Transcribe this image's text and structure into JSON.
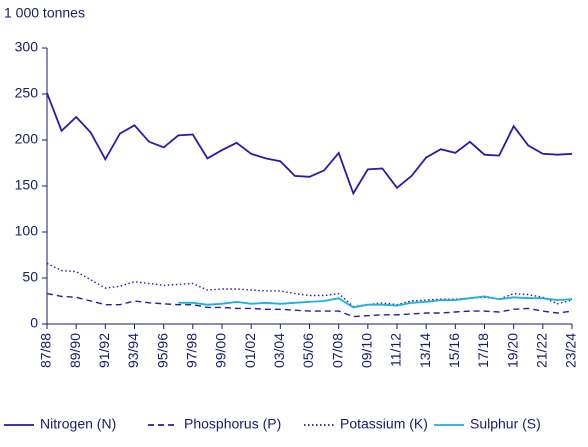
{
  "chart_data": {
    "type": "line",
    "y_label": "1 000 tonnes",
    "categories": [
      "87/88",
      null,
      "89/90",
      null,
      "91/92",
      null,
      "93/94",
      null,
      "95/96",
      null,
      "97/98",
      null,
      "99/00",
      null,
      "01/02",
      null,
      "03/04",
      null,
      "05/06",
      null,
      "07/08",
      null,
      "09/10",
      null,
      "11/12",
      null,
      "13/14",
      null,
      "15/16",
      null,
      "17/18",
      null,
      "19/20",
      null,
      "21/22",
      null,
      "23/24"
    ],
    "series": [
      {
        "name": "Nitrogen (N)",
        "color": "#2a1aa8",
        "line_style": "solid",
        "values": [
          251,
          210,
          225,
          208,
          179,
          207,
          216,
          198,
          192,
          205,
          206,
          180,
          189,
          197,
          185,
          180,
          177,
          161,
          160,
          167,
          186,
          142,
          168,
          169,
          148,
          161,
          181,
          190,
          186,
          198,
          184,
          183,
          215,
          194,
          185,
          184,
          185
        ]
      },
      {
        "name": "Phosphorus (P)",
        "color": "#2a1aa8",
        "line_style": "dashed",
        "values": [
          33,
          30,
          29,
          25,
          21,
          21,
          25,
          23,
          22,
          21,
          21,
          18,
          18,
          17,
          17,
          16,
          16,
          15,
          14,
          14,
          14,
          8,
          9,
          10,
          10,
          11,
          12,
          12,
          13,
          14,
          14,
          13,
          16,
          17,
          14,
          12,
          14
        ]
      },
      {
        "name": "Potassium (K)",
        "color": "#2a1aa8",
        "line_style": "dotted",
        "values": [
          66,
          58,
          57,
          48,
          39,
          41,
          46,
          44,
          42,
          43,
          44,
          37,
          38,
          38,
          37,
          36,
          36,
          33,
          31,
          31,
          33,
          19,
          21,
          23,
          21,
          25,
          26,
          27,
          27,
          28,
          29,
          27,
          33,
          32,
          29,
          22,
          26
        ]
      },
      {
        "name": "Sulphur (S)",
        "color": "#1ab0e0",
        "line_style": "solid",
        "values": [
          null,
          null,
          null,
          null,
          null,
          null,
          null,
          null,
          null,
          23,
          23,
          21,
          22,
          24,
          22,
          23,
          22,
          23,
          24,
          25,
          28,
          18,
          21,
          21,
          20,
          23,
          24,
          26,
          26,
          28,
          30,
          27,
          29,
          28,
          28,
          26,
          27
        ]
      }
    ],
    "ylim": [
      0,
      300
    ],
    "yticks": [
      0,
      50,
      100,
      150,
      200,
      250,
      300
    ],
    "grid": false
  }
}
